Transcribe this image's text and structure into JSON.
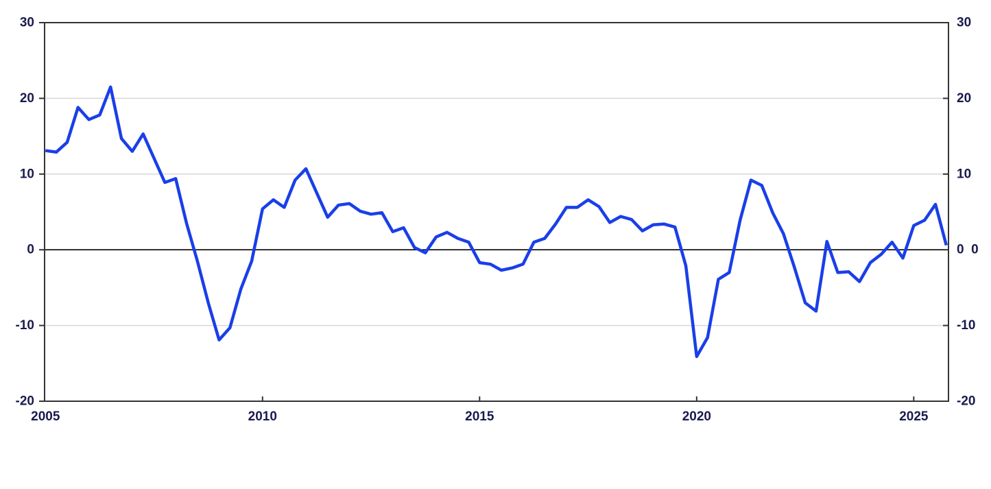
{
  "chart_data": {
    "type": "line",
    "title": "",
    "legend": "none",
    "frequency": "quarterly",
    "start_period": "2005Q1",
    "end_period": "2025Q4",
    "series": [
      {
        "name": "diffusion-index",
        "values": [
          13.1,
          12.9,
          14.2,
          18.8,
          17.2,
          17.8,
          21.5,
          14.7,
          13.0,
          15.3,
          12.1,
          8.9,
          9.4,
          3.5,
          -1.5,
          -7.0,
          -11.9,
          -10.3,
          -5.2,
          -1.5,
          5.4,
          6.6,
          5.6,
          9.2,
          10.7,
          7.5,
          4.3,
          5.9,
          6.1,
          5.1,
          4.7,
          4.9,
          2.4,
          2.9,
          0.3,
          -0.4,
          1.7,
          2.3,
          1.5,
          1.0,
          -1.7,
          -1.9,
          -2.7,
          -2.4,
          -1.9,
          1.0,
          1.5,
          3.4,
          5.6,
          5.6,
          6.6,
          5.7,
          3.6,
          4.4,
          4.0,
          2.5,
          3.3,
          3.4,
          3.0,
          -2.1,
          -14.1,
          -11.6,
          -3.9,
          -3.0,
          3.9,
          9.2,
          8.5,
          4.9,
          2.1,
          -2.3,
          -7.0,
          -8.1,
          1.1,
          -3.0,
          -2.9,
          -4.2,
          -1.7,
          -0.6,
          1.0,
          -1.1,
          3.2,
          3.9,
          6.0,
          0.6
        ]
      }
    ],
    "xlabel": "",
    "ylabel": "",
    "ylim": [
      -20,
      30
    ],
    "y_ticks": [
      30,
      20,
      10,
      0,
      -10,
      -20
    ],
    "y_tick_labels_left": [
      "30",
      "20",
      "10",
      "0",
      "-10",
      "-20"
    ],
    "y_tick_labels_right": [
      "30",
      "20",
      "10",
      "0  0",
      "-10",
      "-20"
    ],
    "x_tick_years": [
      2005,
      2010,
      2015,
      2020,
      2025
    ],
    "x_tick_labels": [
      "2005",
      "2010",
      "2015",
      "2020",
      "2025"
    ],
    "grid": "horizontal-at-20-10-minus10",
    "zero_line": true,
    "colors": {
      "line": "#1a3fe8",
      "grid": "#d8d8d8",
      "zero_line": "#000000",
      "border": "#333333",
      "tick_text": "#1a1a4e",
      "background": "#ffffff"
    }
  }
}
